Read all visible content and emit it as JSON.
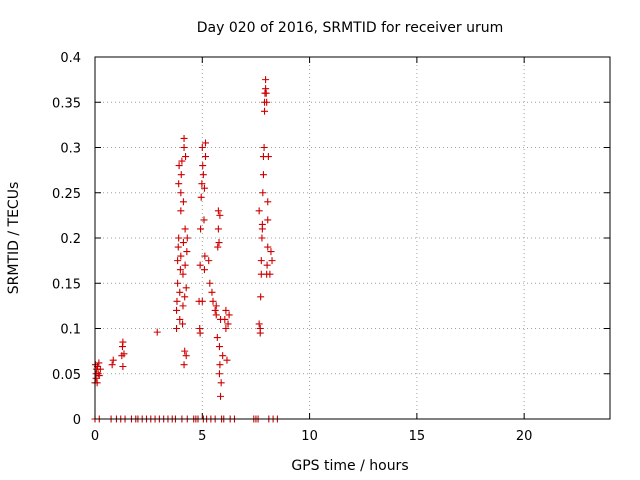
{
  "chart_data": {
    "type": "scatter",
    "title": "Day 020 of 2016, SRMTID for receiver urum",
    "xlabel": "GPS time / hours",
    "ylabel": "SRMTID / TECUs",
    "xlim": [
      0,
      24
    ],
    "ylim": [
      0,
      0.4
    ],
    "grid": true,
    "x_ticks": [
      {
        "value": 0,
        "label": "0"
      },
      {
        "value": 5,
        "label": "5"
      },
      {
        "value": 10,
        "label": "10"
      },
      {
        "value": 15,
        "label": "15"
      },
      {
        "value": 20,
        "label": "20"
      }
    ],
    "y_ticks": [
      {
        "value": 0,
        "label": "0"
      },
      {
        "value": 0.05,
        "label": "0.05"
      },
      {
        "value": 0.1,
        "label": "0.1"
      },
      {
        "value": 0.15,
        "label": "0.15"
      },
      {
        "value": 0.2,
        "label": "0.2"
      },
      {
        "value": 0.25,
        "label": "0.25"
      },
      {
        "value": 0.3,
        "label": "0.3"
      },
      {
        "value": 0.35,
        "label": "0.35"
      },
      {
        "value": 0.4,
        "label": "0.4"
      }
    ],
    "marker": "+",
    "marker_color": "#cc0000",
    "series": [
      {
        "name": "SRMTID",
        "points": [
          [
            0.0,
            0.0
          ],
          [
            0.0,
            0.04
          ],
          [
            0.02,
            0.06
          ],
          [
            0.05,
            0.05
          ],
          [
            0.05,
            0.045
          ],
          [
            0.08,
            0.055
          ],
          [
            0.1,
            0.04
          ],
          [
            0.12,
            0.058
          ],
          [
            0.15,
            0.05
          ],
          [
            0.18,
            0.062
          ],
          [
            0.2,
            0.048
          ],
          [
            0.2,
            0.0
          ],
          [
            0.25,
            0.055
          ],
          [
            0.75,
            0.0
          ],
          [
            0.8,
            0.06
          ],
          [
            0.85,
            0.065
          ],
          [
            1.0,
            0.0
          ],
          [
            1.2,
            0.0
          ],
          [
            1.25,
            0.07
          ],
          [
            1.28,
            0.08
          ],
          [
            1.3,
            0.085
          ],
          [
            1.3,
            0.058
          ],
          [
            1.35,
            0.072
          ],
          [
            1.4,
            0.0
          ],
          [
            1.7,
            0.0
          ],
          [
            1.9,
            0.0
          ],
          [
            2.0,
            0.0
          ],
          [
            2.2,
            0.0
          ],
          [
            2.4,
            0.0
          ],
          [
            2.6,
            0.0
          ],
          [
            2.8,
            0.0
          ],
          [
            2.9,
            0.096
          ],
          [
            3.0,
            0.0
          ],
          [
            3.2,
            0.0
          ],
          [
            3.4,
            0.0
          ],
          [
            3.6,
            0.0
          ],
          [
            3.75,
            0.0
          ],
          [
            3.8,
            0.1
          ],
          [
            3.8,
            0.12
          ],
          [
            3.82,
            0.13
          ],
          [
            3.85,
            0.15
          ],
          [
            3.85,
            0.175
          ],
          [
            3.88,
            0.19
          ],
          [
            3.9,
            0.2
          ],
          [
            3.9,
            0.26
          ],
          [
            3.92,
            0.28
          ],
          [
            3.95,
            0.11
          ],
          [
            3.95,
            0.14
          ],
          [
            3.98,
            0.165
          ],
          [
            4.0,
            0.18
          ],
          [
            4.0,
            0.23
          ],
          [
            4.0,
            0.25
          ],
          [
            4.02,
            0.27
          ],
          [
            4.05,
            0.285
          ],
          [
            4.05,
            0.0
          ],
          [
            4.08,
            0.105
          ],
          [
            4.1,
            0.125
          ],
          [
            4.1,
            0.16
          ],
          [
            4.12,
            0.195
          ],
          [
            4.12,
            0.24
          ],
          [
            4.15,
            0.3
          ],
          [
            4.15,
            0.31
          ],
          [
            4.15,
            0.06
          ],
          [
            4.18,
            0.075
          ],
          [
            4.18,
            0.135
          ],
          [
            4.2,
            0.17
          ],
          [
            4.2,
            0.21
          ],
          [
            4.22,
            0.29
          ],
          [
            4.25,
            0.07
          ],
          [
            4.25,
            0.145
          ],
          [
            4.28,
            0.185
          ],
          [
            4.3,
            0.2
          ],
          [
            4.3,
            0.0
          ],
          [
            4.6,
            0.0
          ],
          [
            4.7,
            0.0
          ],
          [
            4.8,
            0.0
          ],
          [
            4.85,
            0.13
          ],
          [
            4.88,
            0.1
          ],
          [
            4.9,
            0.095
          ],
          [
            4.9,
            0.17
          ],
          [
            4.92,
            0.21
          ],
          [
            4.95,
            0.245
          ],
          [
            4.98,
            0.26
          ],
          [
            5.0,
            0.3
          ],
          [
            5.0,
            0.13
          ],
          [
            5.02,
            0.28
          ],
          [
            5.05,
            0.27
          ],
          [
            5.05,
            0.0
          ],
          [
            5.08,
            0.22
          ],
          [
            5.1,
            0.165
          ],
          [
            5.1,
            0.255
          ],
          [
            5.12,
            0.18
          ],
          [
            5.15,
            0.305
          ],
          [
            5.15,
            0.29
          ],
          [
            5.2,
            0.0
          ],
          [
            5.3,
            0.175
          ],
          [
            5.35,
            0.15
          ],
          [
            5.4,
            0.0
          ],
          [
            5.45,
            0.14
          ],
          [
            5.5,
            0.13
          ],
          [
            5.6,
            0.0
          ],
          [
            5.6,
            0.12
          ],
          [
            5.65,
            0.125
          ],
          [
            5.65,
            0.115
          ],
          [
            5.7,
            0.09
          ],
          [
            5.72,
            0.19
          ],
          [
            5.75,
            0.21
          ],
          [
            5.75,
            0.23
          ],
          [
            5.78,
            0.195
          ],
          [
            5.8,
            0.05
          ],
          [
            5.8,
            0.08
          ],
          [
            5.82,
            0.06
          ],
          [
            5.82,
            0.225
          ],
          [
            5.85,
            0.11
          ],
          [
            5.85,
            0.025
          ],
          [
            5.88,
            0.04
          ],
          [
            5.9,
            0.0
          ],
          [
            5.95,
            0.07
          ],
          [
            6.0,
            0.0
          ],
          [
            6.05,
            0.11
          ],
          [
            6.1,
            0.12
          ],
          [
            6.1,
            0.1
          ],
          [
            6.15,
            0.065
          ],
          [
            6.2,
            0.105
          ],
          [
            6.25,
            0.115
          ],
          [
            6.3,
            0.0
          ],
          [
            6.5,
            0.0
          ],
          [
            7.4,
            0.0
          ],
          [
            7.5,
            0.0
          ],
          [
            7.6,
            0.0
          ],
          [
            7.65,
            0.23
          ],
          [
            7.65,
            0.105
          ],
          [
            7.7,
            0.1
          ],
          [
            7.7,
            0.095
          ],
          [
            7.72,
            0.135
          ],
          [
            7.75,
            0.16
          ],
          [
            7.75,
            0.175
          ],
          [
            7.78,
            0.2
          ],
          [
            7.8,
            0.21
          ],
          [
            7.8,
            0.215
          ],
          [
            7.82,
            0.25
          ],
          [
            7.85,
            0.27
          ],
          [
            7.85,
            0.29
          ],
          [
            7.88,
            0.3
          ],
          [
            7.9,
            0.34
          ],
          [
            7.9,
            0.35
          ],
          [
            7.92,
            0.36
          ],
          [
            7.95,
            0.365
          ],
          [
            7.95,
            0.375
          ],
          [
            7.98,
            0.36
          ],
          [
            8.0,
            0.35
          ],
          [
            8.0,
            0.16
          ],
          [
            8.02,
            0.17
          ],
          [
            8.05,
            0.19
          ],
          [
            8.05,
            0.22
          ],
          [
            8.05,
            0.24
          ],
          [
            8.08,
            0.29
          ],
          [
            8.1,
            0.0
          ],
          [
            8.15,
            0.16
          ],
          [
            8.2,
            0.185
          ],
          [
            8.25,
            0.175
          ],
          [
            8.3,
            0.0
          ],
          [
            8.5,
            0.0
          ]
        ]
      }
    ]
  }
}
